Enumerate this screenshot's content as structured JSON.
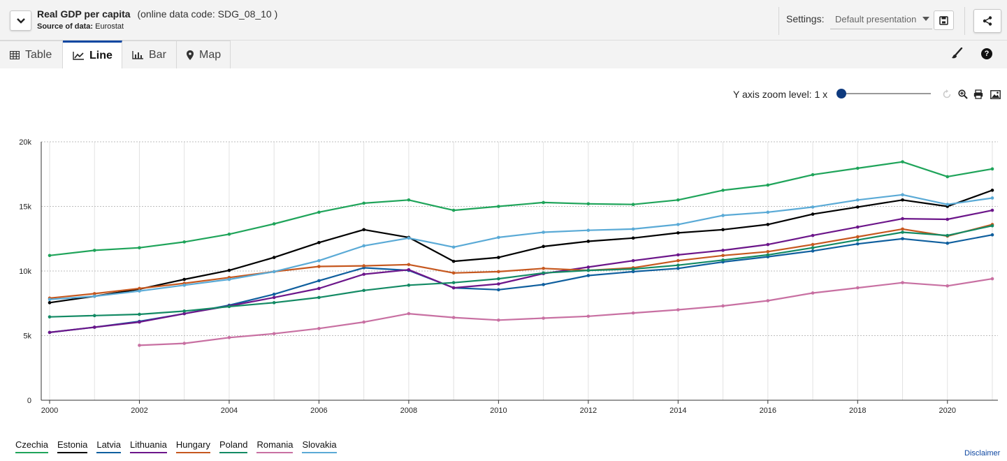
{
  "header": {
    "title": "Real GDP per capita",
    "code": "(online data code: SDG_08_10 )",
    "source_label": "Source of data:",
    "source_value": "Eurostat",
    "settings_label": "Settings:",
    "settings_value": "Default presentation"
  },
  "tabs": [
    {
      "label": "Table",
      "icon": "table-icon"
    },
    {
      "label": "Line",
      "icon": "line-chart-icon"
    },
    {
      "label": "Bar",
      "icon": "bar-chart-icon"
    },
    {
      "label": "Map",
      "icon": "map-pin-icon"
    }
  ],
  "zoom": {
    "label": "Y axis zoom level: 1 x",
    "level": 1
  },
  "disclaimer": "Disclaimer",
  "chart_data": {
    "type": "line",
    "title": "",
    "xlabel": "",
    "ylabel": "",
    "x": [
      2000,
      2001,
      2002,
      2003,
      2004,
      2005,
      2006,
      2007,
      2008,
      2009,
      2010,
      2011,
      2012,
      2013,
      2014,
      2015,
      2016,
      2017,
      2018,
      2019,
      2020,
      2021
    ],
    "xlim": [
      2000,
      2021
    ],
    "ylim": [
      0,
      20000
    ],
    "xticks": [
      2000,
      2002,
      2004,
      2006,
      2008,
      2010,
      2012,
      2014,
      2016,
      2018,
      2020
    ],
    "yticks": [
      0,
      5000,
      10000,
      15000,
      20000
    ],
    "ytick_labels": [
      "0",
      "5k",
      "10k",
      "15k",
      "20k"
    ],
    "grid": true,
    "legend": "bottom-left",
    "series": [
      {
        "name": "Czechia",
        "color": "#1fa45a",
        "values": [
          11200,
          11600,
          11800,
          12250,
          12850,
          13650,
          14550,
          15250,
          15500,
          14700,
          15000,
          15300,
          15200,
          15150,
          15500,
          16250,
          16650,
          17450,
          17950,
          18450,
          17300,
          17900
        ]
      },
      {
        "name": "Estonia",
        "color": "#000000",
        "values": [
          7550,
          8050,
          8600,
          9350,
          10050,
          11050,
          12200,
          13200,
          12600,
          10750,
          11050,
          11900,
          12300,
          12550,
          12950,
          13200,
          13600,
          14400,
          14950,
          15500,
          15000,
          16250
        ]
      },
      {
        "name": "Latvia",
        "color": "#0f5f9e",
        "values": [
          5250,
          5650,
          6100,
          6700,
          7350,
          8200,
          9250,
          10250,
          10050,
          8700,
          8550,
          8950,
          9650,
          9950,
          10200,
          10700,
          11100,
          11550,
          12100,
          12500,
          12150,
          12800
        ]
      },
      {
        "name": "Lithuania",
        "color": "#6c168a",
        "values": [
          5250,
          5650,
          6050,
          6700,
          7300,
          7950,
          8650,
          9750,
          10100,
          8700,
          9000,
          9800,
          10300,
          10800,
          11250,
          11600,
          12050,
          12750,
          13400,
          14050,
          14000,
          14700
        ]
      },
      {
        "name": "Hungary",
        "color": "#c6581f",
        "values": [
          7900,
          8250,
          8650,
          9050,
          9500,
          9950,
          10350,
          10400,
          10500,
          9850,
          9950,
          10200,
          10050,
          10250,
          10800,
          11200,
          11500,
          12050,
          12650,
          13250,
          12700,
          13600
        ]
      },
      {
        "name": "Poland",
        "color": "#138a64",
        "values": [
          6450,
          6550,
          6650,
          6900,
          7250,
          7550,
          7950,
          8500,
          8900,
          9100,
          9400,
          9850,
          10050,
          10150,
          10450,
          10850,
          11250,
          11800,
          12400,
          13000,
          12750,
          13500
        ]
      },
      {
        "name": "Romania",
        "color": "#c870a2",
        "values": [
          null,
          null,
          4250,
          4400,
          4850,
          5150,
          5550,
          6050,
          6700,
          6400,
          6200,
          6350,
          6500,
          6750,
          7000,
          7300,
          7700,
          8300,
          8700,
          9100,
          8850,
          9400
        ]
      },
      {
        "name": "Slovakia",
        "color": "#5aaad6",
        "values": [
          7800,
          8050,
          8450,
          8900,
          9350,
          9950,
          10800,
          11950,
          12550,
          11850,
          12600,
          13000,
          13150,
          13250,
          13600,
          14300,
          14550,
          14950,
          15500,
          15900,
          15150,
          15650
        ]
      }
    ]
  }
}
